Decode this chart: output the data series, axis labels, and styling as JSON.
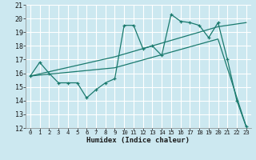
{
  "xlabel": "Humidex (Indice chaleur)",
  "bg_color": "#cce8f0",
  "grid_color": "#ffffff",
  "line_color": "#1a7a6e",
  "xlim": [
    -0.5,
    23.5
  ],
  "ylim": [
    12,
    21
  ],
  "xticks": [
    0,
    1,
    2,
    3,
    4,
    5,
    6,
    7,
    8,
    9,
    10,
    11,
    12,
    13,
    14,
    15,
    16,
    17,
    18,
    19,
    20,
    21,
    22,
    23
  ],
  "yticks": [
    12,
    13,
    14,
    15,
    16,
    17,
    18,
    19,
    20,
    21
  ],
  "line1_x": [
    0,
    1,
    2,
    3,
    4,
    5,
    6,
    7,
    8,
    9,
    10,
    11,
    12,
    13,
    14,
    15,
    16,
    17,
    18,
    19,
    20,
    21,
    22,
    23
  ],
  "line1_y": [
    15.8,
    16.8,
    16.0,
    15.3,
    15.3,
    15.3,
    14.2,
    14.8,
    15.3,
    15.6,
    19.5,
    19.5,
    17.8,
    18.0,
    17.3,
    20.3,
    19.8,
    19.7,
    19.5,
    18.6,
    19.7,
    17.0,
    14.0,
    12.1
  ],
  "line2_x": [
    0,
    9,
    20,
    23
  ],
  "line2_y": [
    15.8,
    17.2,
    19.4,
    19.7
  ],
  "line3_x": [
    0,
    9,
    20,
    23
  ],
  "line3_y": [
    15.8,
    16.4,
    18.5,
    12.1
  ]
}
